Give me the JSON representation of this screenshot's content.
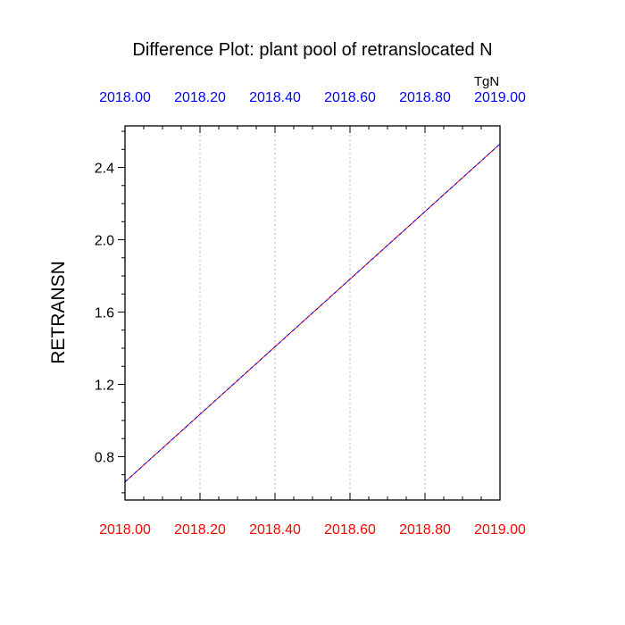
{
  "chart_data": {
    "type": "line",
    "title": "Difference Plot: plant pool of retranslocated N",
    "units_label": "TgN",
    "ylabel": "RETRANSN",
    "xlabel": "",
    "xlim": [
      2018.0,
      2019.0
    ],
    "ylim": [
      0.56,
      2.63
    ],
    "x_ticks": [
      2018.0,
      2018.2,
      2018.4,
      2018.6,
      2018.8,
      2019.0
    ],
    "x_tick_labels_bottom": [
      "2018.00",
      "2018.20",
      "2018.40",
      "2018.60",
      "2018.80",
      "2019.00"
    ],
    "x_tick_labels_top": [
      "2018.00",
      "2018.20",
      "2018.40",
      "2018.60",
      "2018.80",
      "2019.00"
    ],
    "y_ticks": [
      0.8,
      1.2,
      1.6,
      2.0,
      2.4
    ],
    "y_tick_labels": [
      "0.8",
      "1.2",
      "1.6",
      "2.0",
      "2.4"
    ],
    "y_minor_step": 0.1,
    "x_minor_step": 0.05,
    "grid": "vertical-dotted",
    "series": [
      {
        "color": "#ff0000",
        "dash": "solid",
        "x": [
          2018.0,
          2019.0
        ],
        "y": [
          0.66,
          2.53
        ]
      },
      {
        "color": "#0000ff",
        "dash": "dashed",
        "x": [
          2018.0,
          2019.0
        ],
        "y": [
          0.66,
          2.53
        ]
      }
    ],
    "colors": {
      "bottom_axis": "#ff0000",
      "top_axis": "#0000ff",
      "text": "#000000",
      "grid": "#bbbbbb"
    }
  }
}
